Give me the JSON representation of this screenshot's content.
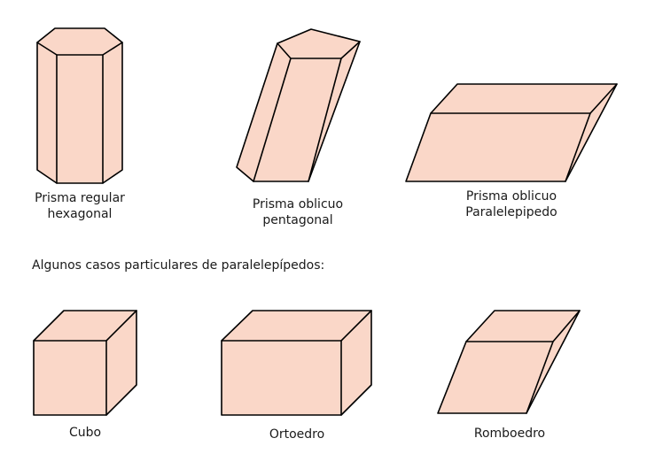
{
  "fill_color": "#fad7c8",
  "stroke_color": "#000000",
  "shapes": {
    "hexagonal": {
      "label_line1": "Prisma regular",
      "label_line2": "hexagonal"
    },
    "pentagonal": {
      "label_line1": "Prisma oblicuo",
      "label_line2": "pentagonal"
    },
    "parallelepiped": {
      "label_line1": "Prisma oblicuo",
      "label_line2": "Paralelepipedo"
    },
    "cube": {
      "label": "Cubo"
    },
    "orthohedron": {
      "label": "Ortoedro"
    },
    "rhombohedron": {
      "label": "Romboedro"
    }
  },
  "intro_text": "Algunos casos particulares de paralelepípedos:"
}
